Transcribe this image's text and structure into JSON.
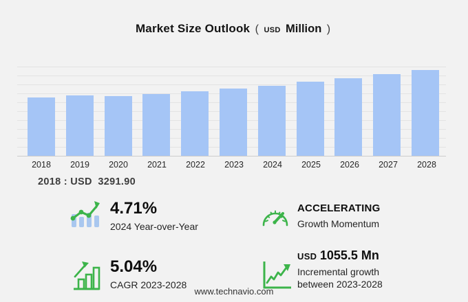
{
  "title": {
    "main": "Market Size Outlook",
    "paren_open": "(",
    "unit_small": "USD",
    "unit_big": "Million",
    "paren_close": ")"
  },
  "chart_data": {
    "type": "bar",
    "title": "Market Size Outlook (USD Million)",
    "categories": [
      "2018",
      "2019",
      "2020",
      "2021",
      "2022",
      "2023",
      "2024",
      "2025",
      "2026",
      "2027",
      "2028"
    ],
    "values": [
      3291.9,
      3420,
      3360,
      3476,
      3646,
      3788.6,
      3967.1,
      4170,
      4398,
      4618,
      4844.1
    ],
    "ylabel": "",
    "xlabel": "",
    "ylim": [
      0,
      5000
    ],
    "gridline_step": 500,
    "grid": true,
    "legend": false,
    "bar_color": "#a5c5f6"
  },
  "annotation": {
    "base_year_value": "2018 : USD  3291.90"
  },
  "stats": [
    {
      "id": "yoy",
      "icon": "bars-with-growth-line-icon",
      "value": "4.71%",
      "label": "2024 Year-over-Year"
    },
    {
      "id": "momentum",
      "icon": "gauge-icon",
      "value": "ACCELERATING",
      "label": "Growth Momentum"
    },
    {
      "id": "cagr",
      "icon": "bar-chart-arrow-icon",
      "value": "5.04%",
      "label": "CAGR 2023-2028"
    },
    {
      "id": "incremental",
      "icon": "line-chart-axes-icon",
      "value_prefix": "USD",
      "value": "1055.5 Mn",
      "label": "Incremental growth between 2023-2028"
    }
  ],
  "footer": {
    "website": "www.technavio.com"
  },
  "colors": {
    "background": "#f2f2f2",
    "bar_blue": "#a5c5f6",
    "icon_bar_blue": "#a9c7ef",
    "accent_green": "#3cb44a",
    "gridline": "#e3e3e3"
  }
}
